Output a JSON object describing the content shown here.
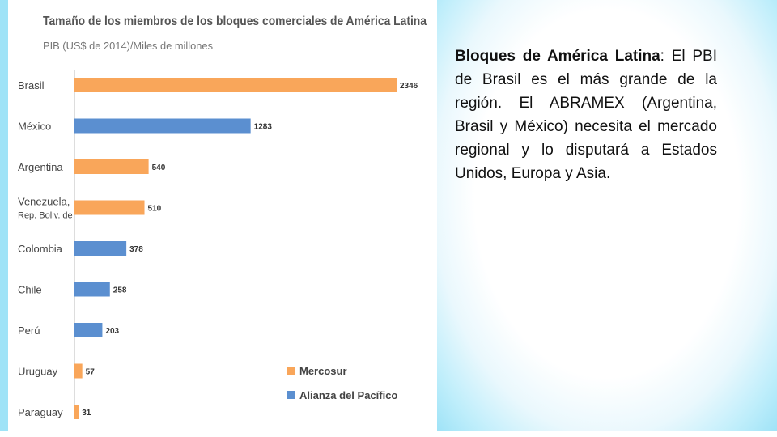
{
  "caption": {
    "lead": "Bloques de América Latina",
    "body": ": El PBI de Brasil es el más grande de la región. El ABRAMEX (Argentina, Brasil y México) necesita el mercado regional y lo disputará a Estados Unidos, Europa y Asia."
  },
  "colors": {
    "Mercosur": "#f9a65a",
    "Alianza del Pacífico": "#5b8fd0",
    "page_bg": "#9fe3f7"
  },
  "chart_data": {
    "type": "bar",
    "orientation": "horizontal",
    "title": "Tamaño de los miembros de los bloques comerciales de América Latina",
    "subtitle": "PIB (US$ de 2014)/Miles de millones",
    "categories": [
      [
        "Brasil"
      ],
      [
        "México"
      ],
      [
        "Argentina"
      ],
      [
        "Venezuela,",
        "Rep. Boliv. de"
      ],
      [
        "Colombia"
      ],
      [
        "Chile"
      ],
      [
        "Perú"
      ],
      [
        "Uruguay"
      ],
      [
        "Paraguay"
      ]
    ],
    "values": [
      2346,
      1283,
      540,
      510,
      378,
      258,
      203,
      57,
      31
    ],
    "value_labels": [
      "2346",
      "1283",
      "540",
      "510",
      "378",
      "258",
      "203",
      "57",
      "31"
    ],
    "groups": [
      "Mercosur",
      "Alianza del Pacífico",
      "Mercosur",
      "Mercosur",
      "Alianza del Pacífico",
      "Alianza del Pacífico",
      "Alianza del Pacífico",
      "Mercosur",
      "Mercosur"
    ],
    "legend": [
      "Mercosur",
      "Alianza del Pacífico"
    ],
    "legend_position": "bottom-right",
    "xlim": [
      0,
      2346
    ],
    "grid": false
  }
}
